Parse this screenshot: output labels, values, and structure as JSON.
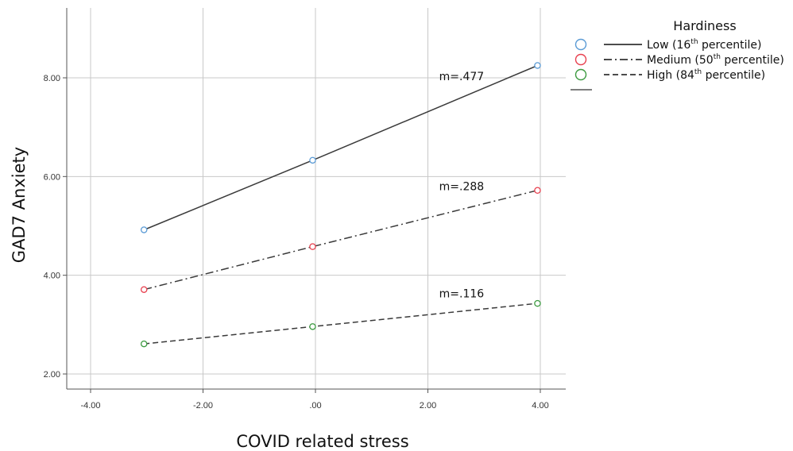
{
  "chart_data": {
    "type": "line",
    "xlabel": "COVID related stress",
    "ylabel": "GAD7 Anxiety",
    "xlim": [
      -4.5,
      4.5
    ],
    "ylim": [
      1.8,
      9.4
    ],
    "xticks": [
      -4,
      -2,
      0,
      2,
      4
    ],
    "yticks": [
      2,
      4,
      6,
      8
    ],
    "xtick_labels": [
      "-4.00",
      "-2.00",
      ".00",
      "2.00",
      "4.00"
    ],
    "ytick_labels": [
      "2.00",
      "4.00",
      "6.00",
      "8.00"
    ],
    "grid": true,
    "legend": {
      "title": "Hardiness",
      "placement": "top-right, outside plot"
    },
    "series": [
      {
        "name": "Low (16th percentile)",
        "name_base": "Low (16",
        "name_sup": "th",
        "name_rest": " percentile)",
        "color": "#5b9bd5",
        "line_style": "solid",
        "x": [
          -3.05,
          -0.05,
          3.95
        ],
        "y": [
          4.92,
          6.33,
          8.25
        ],
        "slope_label": "m=.477",
        "slope_label_at": [
          2.2,
          7.95
        ]
      },
      {
        "name": "Medium (50th percentile)",
        "name_base": "Medium (50",
        "name_sup": "th",
        "name_rest": " percentile)",
        "color": "#e8404f",
        "line_style": "dashdot",
        "x": [
          -3.05,
          -0.05,
          3.95
        ],
        "y": [
          3.71,
          4.58,
          5.72
        ],
        "slope_label": "m=.288",
        "slope_label_at": [
          2.2,
          5.72
        ]
      },
      {
        "name": "High (84th percentile)",
        "name_base": "High (84",
        "name_sup": "th",
        "name_rest": " percentile)",
        "color": "#3c9a40",
        "line_style": "dashed",
        "x": [
          -3.05,
          -0.05,
          3.95
        ],
        "y": [
          2.61,
          2.96,
          3.43
        ],
        "slope_label": "m=.116",
        "slope_label_at": [
          2.2,
          3.55
        ]
      }
    ]
  }
}
